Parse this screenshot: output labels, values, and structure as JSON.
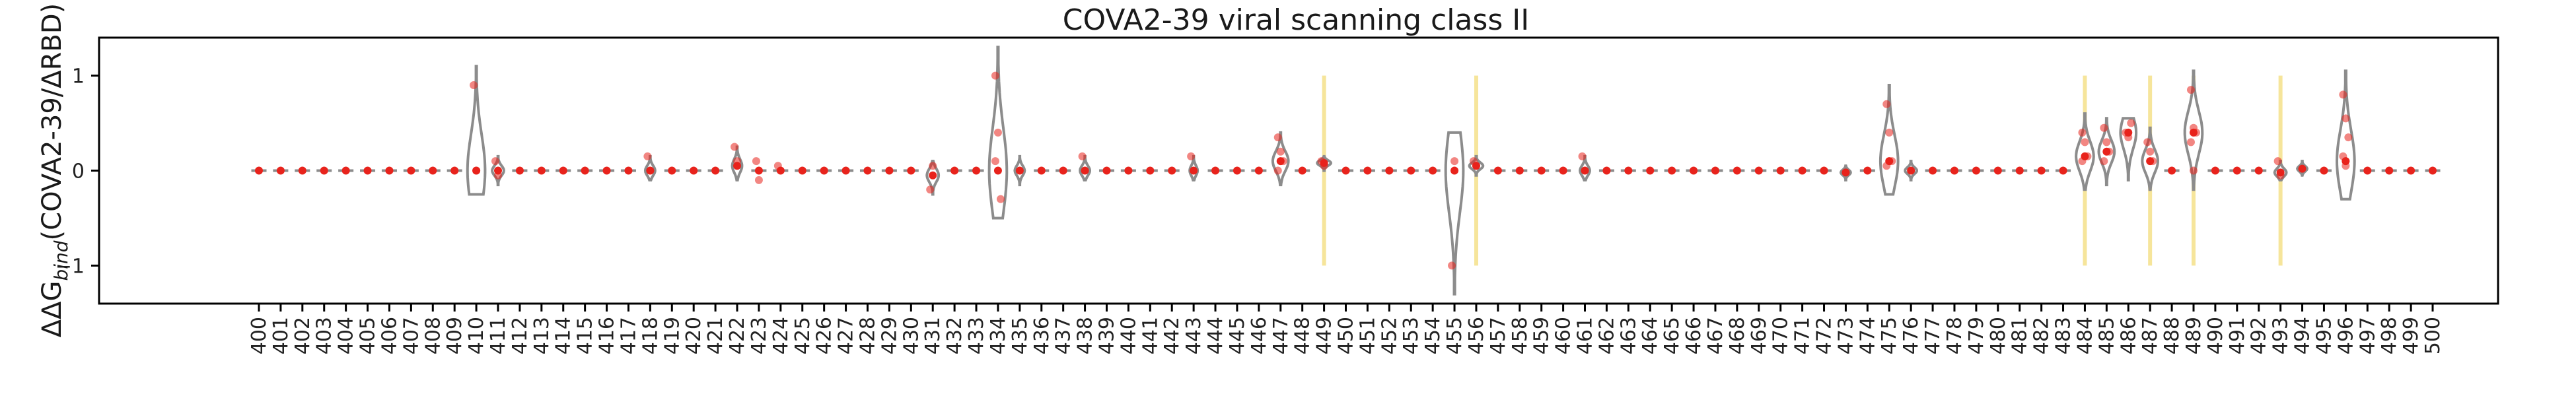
{
  "chart_data": {
    "type": "violin",
    "title": "COVA2-39 viral scanning class II",
    "ylabel_prefix": "ΔΔG",
    "ylabel_subscript": "bind",
    "ylabel_suffix": "(COVA2-39/ΔRBD)",
    "xlabel": "",
    "ylim": [
      -1.4,
      1.4
    ],
    "yticks": [
      1,
      0,
      -1
    ],
    "ytick_labels": [
      "1",
      "0",
      "−1"
    ],
    "grid": false,
    "colors": {
      "violin": "#8c8c8c",
      "points": "#e8231c",
      "highlight": "#f5e08a",
      "axis": "#000000"
    },
    "highlighted_positions": [
      "449",
      "456",
      "484",
      "487",
      "489",
      "493"
    ],
    "positions": [
      "400",
      "401",
      "402",
      "403",
      "404",
      "405",
      "406",
      "407",
      "408",
      "409",
      "410",
      "411",
      "412",
      "413",
      "414",
      "415",
      "416",
      "417",
      "418",
      "419",
      "420",
      "421",
      "422",
      "423",
      "424",
      "425",
      "426",
      "427",
      "428",
      "429",
      "430",
      "431",
      "432",
      "433",
      "434",
      "435",
      "436",
      "437",
      "438",
      "439",
      "440",
      "441",
      "442",
      "443",
      "444",
      "445",
      "446",
      "447",
      "448",
      "449",
      "450",
      "451",
      "452",
      "453",
      "454",
      "455",
      "456",
      "457",
      "458",
      "459",
      "460",
      "461",
      "462",
      "463",
      "464",
      "465",
      "466",
      "467",
      "468",
      "469",
      "470",
      "471",
      "472",
      "473",
      "474",
      "475",
      "476",
      "477",
      "478",
      "479",
      "480",
      "481",
      "482",
      "483",
      "484",
      "485",
      "486",
      "487",
      "488",
      "489",
      "490",
      "491",
      "492",
      "493",
      "494",
      "495",
      "496",
      "497",
      "498",
      "499",
      "500"
    ],
    "violins": {
      "410": {
        "min": -0.25,
        "max": 1.1,
        "median": 0.0,
        "width": 0.9
      },
      "411": {
        "min": -0.15,
        "max": 0.15,
        "median": 0.0,
        "width": 0.6
      },
      "418": {
        "min": -0.1,
        "max": 0.15,
        "median": 0.0,
        "width": 0.5
      },
      "422": {
        "min": -0.1,
        "max": 0.25,
        "median": 0.05,
        "width": 0.5
      },
      "431": {
        "min": -0.25,
        "max": 0.1,
        "median": -0.05,
        "width": 0.6
      },
      "434": {
        "min": -0.5,
        "max": 1.3,
        "median": 0.0,
        "width": 0.9
      },
      "435": {
        "min": -0.15,
        "max": 0.15,
        "median": 0.0,
        "width": 0.5
      },
      "438": {
        "min": -0.1,
        "max": 0.15,
        "median": 0.0,
        "width": 0.5
      },
      "443": {
        "min": -0.1,
        "max": 0.15,
        "median": 0.0,
        "width": 0.4
      },
      "447": {
        "min": -0.15,
        "max": 0.4,
        "median": 0.1,
        "width": 0.8
      },
      "449": {
        "min": 0.0,
        "max": 0.15,
        "median": 0.08,
        "width": 0.7
      },
      "455": {
        "min": -1.3,
        "max": 0.4,
        "median": 0.0,
        "width": 0.9
      },
      "456": {
        "min": -0.05,
        "max": 0.15,
        "median": 0.05,
        "width": 0.7
      },
      "461": {
        "min": -0.1,
        "max": 0.15,
        "median": 0.0,
        "width": 0.5
      },
      "473": {
        "min": -0.1,
        "max": 0.05,
        "median": -0.02,
        "width": 0.5
      },
      "475": {
        "min": -0.25,
        "max": 0.9,
        "median": 0.1,
        "width": 0.9
      },
      "476": {
        "min": -0.1,
        "max": 0.1,
        "median": 0.0,
        "width": 0.6
      },
      "484": {
        "min": -0.2,
        "max": 0.6,
        "median": 0.15,
        "width": 0.9
      },
      "485": {
        "min": -0.15,
        "max": 0.55,
        "median": 0.2,
        "width": 0.8
      },
      "486": {
        "min": -0.1,
        "max": 0.55,
        "median": 0.4,
        "width": 0.8
      },
      "487": {
        "min": -0.2,
        "max": 0.45,
        "median": 0.1,
        "width": 0.8
      },
      "489": {
        "min": -0.2,
        "max": 1.05,
        "median": 0.4,
        "width": 0.9
      },
      "493": {
        "min": -0.1,
        "max": 0.1,
        "median": -0.02,
        "width": 0.6
      },
      "494": {
        "min": -0.05,
        "max": 0.1,
        "median": 0.02,
        "width": 0.5
      },
      "496": {
        "min": -0.3,
        "max": 1.05,
        "median": 0.1,
        "width": 0.9
      }
    },
    "points": {
      "410": [
        0.9,
        0.0
      ],
      "411": [
        0.1,
        -0.05
      ],
      "418": [
        0.15,
        0.0
      ],
      "422": [
        0.25,
        0.1
      ],
      "423": [
        0.1,
        -0.1
      ],
      "424": [
        0.05
      ],
      "431": [
        -0.2,
        0.05
      ],
      "434": [
        1.0,
        0.4,
        -0.3,
        0.1
      ],
      "438": [
        0.15
      ],
      "443": [
        0.15
      ],
      "447": [
        0.35,
        0.2,
        0.1,
        0.0
      ],
      "449": [
        0.1,
        0.05
      ],
      "455": [
        -1.0,
        0.1
      ],
      "456": [
        0.1,
        0.05
      ],
      "461": [
        0.15
      ],
      "475": [
        0.7,
        0.4,
        0.1,
        0.05
      ],
      "484": [
        0.4,
        0.3,
        0.15,
        0.1
      ],
      "485": [
        0.45,
        0.3,
        0.2,
        0.1
      ],
      "486": [
        0.4,
        0.35,
        0.5
      ],
      "487": [
        0.3,
        0.2,
        0.1
      ],
      "489": [
        0.85,
        0.45,
        0.4,
        0.3,
        0.0
      ],
      "493": [
        0.1,
        -0.05
      ],
      "496": [
        0.8,
        0.55,
        0.35,
        0.15,
        0.05
      ]
    }
  }
}
